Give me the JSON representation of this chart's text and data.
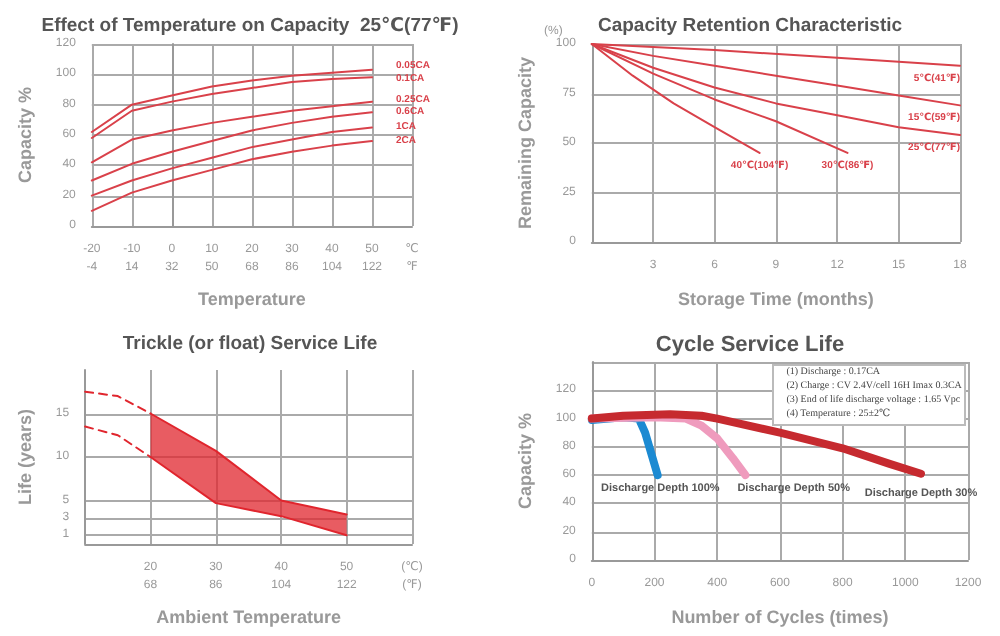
{
  "chart_data": [
    {
      "type": "line",
      "title": "Effect of Temperature on Capacity  25℃(77℉)",
      "xlabel": "Temperature",
      "ylabel": "Capacity %",
      "x": [
        -20,
        -10,
        0,
        10,
        20,
        30,
        40,
        50
      ],
      "series": [
        {
          "name": "0.05CA",
          "color": "#d9414a",
          "values": [
            62,
            80,
            86,
            92,
            96,
            99,
            101,
            103
          ]
        },
        {
          "name": "0.1CA",
          "color": "#d9414a",
          "values": [
            58,
            76,
            82,
            87,
            91,
            95,
            97,
            98
          ]
        },
        {
          "name": "0.25CA",
          "color": "#d9414a",
          "values": [
            42,
            57,
            63,
            68,
            72,
            76,
            79,
            82
          ]
        },
        {
          "name": "0.6CA",
          "color": "#d9414a",
          "values": [
            30,
            41,
            49,
            56,
            63,
            68,
            72,
            75
          ]
        },
        {
          "name": "1CA",
          "color": "#d9414a",
          "values": [
            20,
            30,
            38,
            45,
            52,
            57,
            62,
            65
          ]
        },
        {
          "name": "2CA",
          "color": "#d9414a",
          "values": [
            10,
            22,
            30,
            37,
            44,
            49,
            53,
            56
          ]
        }
      ],
      "xlim": [
        -20,
        60
      ],
      "xticks": [
        -20,
        -10,
        0,
        10,
        20,
        30,
        40,
        50,
        {
          "value": 60,
          "label": "℃"
        }
      ],
      "x2lim": [
        -4,
        140
      ],
      "x2ticks": [
        -4,
        14,
        32,
        50,
        68,
        86,
        104,
        122,
        {
          "value": 140,
          "label": "℉"
        }
      ],
      "ylim": [
        0,
        120
      ],
      "yticks": [
        0,
        20,
        40,
        60,
        80,
        100,
        120
      ],
      "grid": true,
      "legend": false,
      "marker": "none"
    },
    {
      "type": "line",
      "title": "Capacity Retention Characteristic",
      "xlabel": "Storage Time (months)",
      "ylabel": "Remaining Capacity",
      "annotations": [
        "(%)"
      ],
      "series": [
        {
          "name": "5℃(41℉)",
          "color": "#d9414a",
          "x": [
            0,
            6,
            12,
            18
          ],
          "values": [
            100,
            97,
            93,
            89
          ]
        },
        {
          "name": "15℃(59℉)",
          "color": "#d9414a",
          "x": [
            0,
            3,
            6,
            9,
            12,
            15,
            18
          ],
          "values": [
            100,
            94,
            89,
            84,
            79,
            74,
            69
          ]
        },
        {
          "name": "25℃(77℉)",
          "color": "#d9414a",
          "x": [
            0,
            3,
            6,
            9,
            12,
            15,
            18
          ],
          "values": [
            100,
            88,
            78,
            70,
            64,
            58,
            54
          ]
        },
        {
          "name": "30℃(86℉)",
          "color": "#d9414a",
          "x": [
            0,
            3,
            6,
            9,
            12.5
          ],
          "values": [
            100,
            85,
            72,
            61,
            45
          ]
        },
        {
          "name": "40℃(104℉)",
          "color": "#d9414a",
          "x": [
            0,
            2,
            4,
            6,
            8.2
          ],
          "values": [
            100,
            84,
            70,
            58,
            45
          ]
        }
      ],
      "xlim": [
        0,
        18
      ],
      "xticks": [
        3,
        6,
        9,
        12,
        15,
        18
      ],
      "ylim": [
        0,
        100
      ],
      "yticks": [
        0,
        25,
        50,
        75,
        100
      ],
      "grid": true,
      "legend": false,
      "marker": "none"
    },
    {
      "type": "line",
      "title": "Trickle (or float) Service Life",
      "xlabel": "Ambient Temperature",
      "ylabel": "Life (years)",
      "series": [
        {
          "color": "#e0262e",
          "x": [
            20,
            30,
            40,
            50
          ],
          "values": [
            15,
            10.7,
            5,
            3.4
          ]
        },
        {
          "color": "#e0262e",
          "x": [
            20,
            30,
            40,
            50
          ],
          "values": [
            10,
            4.7,
            3.2,
            1
          ]
        },
        {
          "color": "#e0262e",
          "x": [
            10,
            15,
            20
          ],
          "values": [
            17.5,
            17,
            15
          ],
          "line_style": "dashed"
        },
        {
          "color": "#e0262e",
          "x": [
            10,
            15,
            20
          ],
          "values": [
            13.5,
            12.5,
            10
          ],
          "line_style": "dashed"
        }
      ],
      "xlim": [
        10,
        60
      ],
      "xticks": [
        20,
        30,
        40,
        50,
        {
          "value": 60,
          "label": "(℃)"
        }
      ],
      "x2lim": [
        50,
        140
      ],
      "x2ticks": [
        68,
        86,
        104,
        122,
        {
          "value": 140,
          "label": "(℉)"
        }
      ],
      "ylim": [
        0,
        20
      ],
      "yticks": [
        1,
        3,
        5,
        10,
        15
      ],
      "grid": true,
      "legend": false,
      "marker": "none"
    },
    {
      "type": "line",
      "title": "Cycle Service Life",
      "xlabel": "Number of Cycles (times)",
      "ylabel": "Capacity %",
      "annotations": [
        "(1) Discharge : 0.17CA",
        "(2) Charge : CV 2.4V/cell 16H Imax 0.3CA",
        "(3) End of life discharge voltage : 1.65 Vpc",
        "(4) Temperature : 25±2℃"
      ],
      "series": [
        {
          "name": "Discharge Depth 100%",
          "color": "#1c8ad2",
          "x": [
            0,
            100,
            150,
            170,
            190,
            210
          ],
          "values": [
            99,
            101,
            100,
            90,
            75,
            60
          ]
        },
        {
          "name": "Discharge Depth 50%",
          "color": "#ef9bbd",
          "x": [
            0,
            200,
            300,
            350,
            400,
            450,
            490
          ],
          "values": [
            100,
            101,
            100,
            95,
            86,
            72,
            60
          ]
        },
        {
          "name": "Discharge Depth 30%",
          "color": "#c62a2f",
          "x": [
            0,
            100,
            250,
            350,
            400,
            600,
            800,
            950,
            1050
          ],
          "values": [
            100,
            102,
            103,
            102,
            100,
            90,
            79,
            68,
            61
          ]
        }
      ],
      "xlim": [
        0,
        1200
      ],
      "xticks": [
        0,
        200,
        400,
        600,
        800,
        1000,
        1200
      ],
      "ylim": [
        0,
        140
      ],
      "yticks": [
        0,
        20,
        40,
        60,
        80,
        100,
        120
      ],
      "grid": true,
      "legend": false,
      "marker": "none"
    }
  ]
}
